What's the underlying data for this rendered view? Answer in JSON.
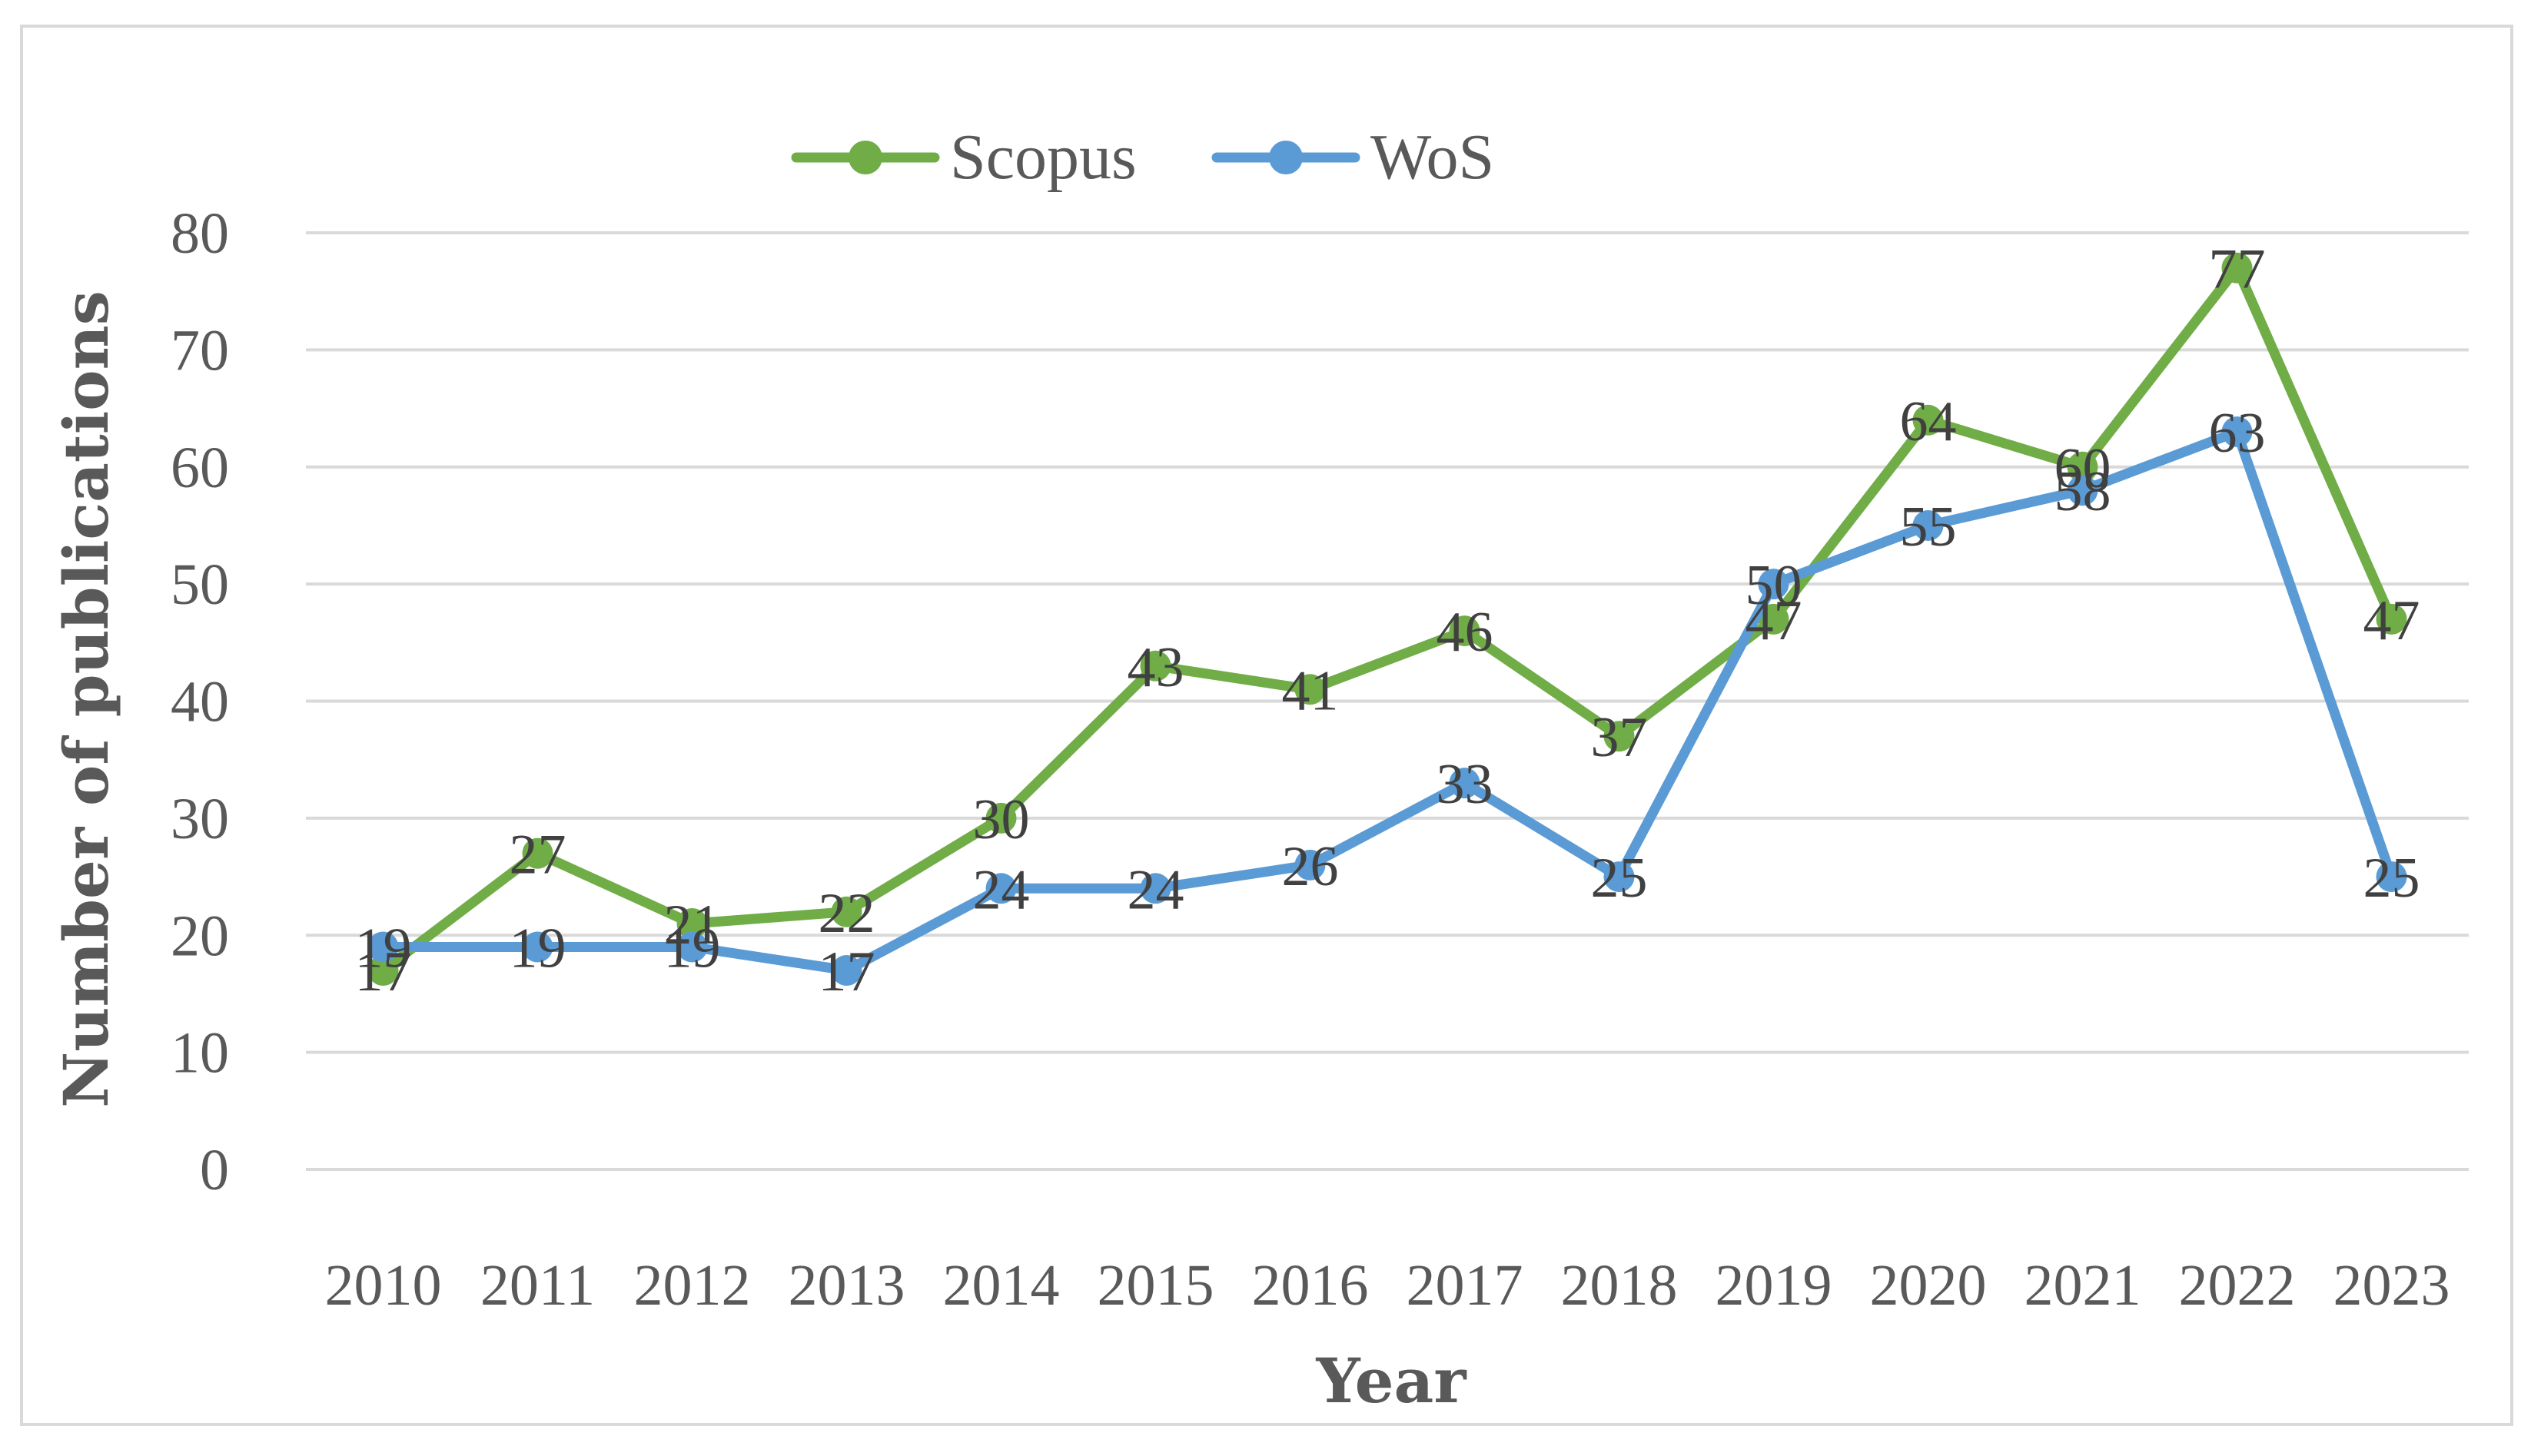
{
  "chart_data": {
    "type": "line",
    "categories": [
      "2010",
      "2011",
      "2012",
      "2013",
      "2014",
      "2015",
      "2016",
      "2017",
      "2018",
      "2019",
      "2020",
      "2021",
      "2022",
      "2023"
    ],
    "series": [
      {
        "name": "Scopus",
        "values": [
          17,
          27,
          21,
          22,
          30,
          43,
          41,
          46,
          37,
          47,
          64,
          60,
          77,
          47
        ]
      },
      {
        "name": "WoS",
        "values": [
          19,
          19,
          19,
          17,
          24,
          24,
          26,
          33,
          25,
          50,
          55,
          58,
          63,
          25
        ]
      }
    ],
    "xlabel": "Year",
    "ylabel": "Number of publications",
    "ylim": [
      0,
      80
    ],
    "yticks": [
      0,
      10,
      20,
      30,
      40,
      50,
      60,
      70,
      80
    ],
    "grid": true,
    "legend_position": "top",
    "data_labels": true
  },
  "colors": {
    "Scopus": "#70ad47",
    "WoS": "#5b9bd5",
    "grid": "#d9d9d9",
    "text": "#595959"
  }
}
